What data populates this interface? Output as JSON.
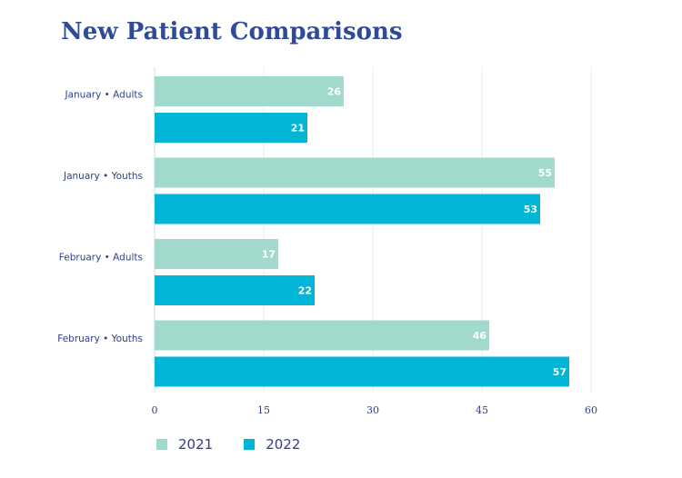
{
  "chart_data": {
    "type": "bar",
    "orientation": "horizontal",
    "title": "New Patient Comparisons",
    "categories": [
      "January • Adults",
      "January • Youths",
      "February • Adults",
      "February • Youths"
    ],
    "series": [
      {
        "name": "2021",
        "color": "#a2d9cd",
        "values": [
          26,
          55,
          17,
          46
        ]
      },
      {
        "name": "2022",
        "color": "#00b5d6",
        "values": [
          21,
          53,
          22,
          57
        ]
      }
    ],
    "xlim": [
      0,
      60
    ],
    "xticks": [
      "0",
      "15",
      "30",
      "45",
      "60"
    ],
    "grid": true,
    "legend_position": "bottom-left"
  }
}
